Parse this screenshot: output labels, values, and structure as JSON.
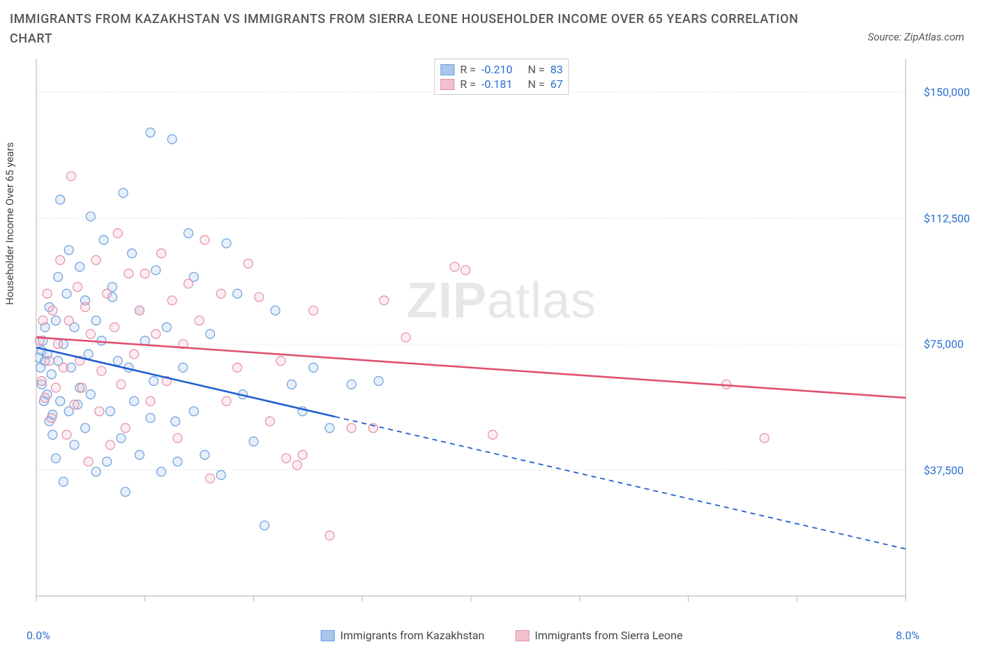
{
  "title": "IMMIGRANTS FROM KAZAKHSTAN VS IMMIGRANTS FROM SIERRA LEONE HOUSEHOLDER INCOME OVER 65 YEARS CORRELATION CHART",
  "source": "Source: ZipAtlas.com",
  "watermark_bold": "ZIP",
  "watermark_rest": "atlas",
  "chart": {
    "type": "scatter",
    "y_label": "Householder Income Over 65 years",
    "x_domain": [
      0.0,
      8.0
    ],
    "y_domain": [
      0,
      160000
    ],
    "x_ticks": [
      0.0,
      1.0,
      2.0,
      3.0,
      4.0,
      5.0,
      6.0,
      7.0,
      8.0
    ],
    "x_tick_labels": {
      "0": "0.0%",
      "8": "8.0%"
    },
    "y_ticks": [
      37500,
      75000,
      112500,
      150000
    ],
    "y_tick_labels": [
      "$37,500",
      "$75,000",
      "$112,500",
      "$150,000"
    ],
    "grid_color": "#e4e4e4",
    "axis_color": "#bfbfbf",
    "tick_len": 8,
    "background": "#ffffff",
    "marker_radius": 6.5,
    "marker_stroke_width": 1.2,
    "marker_fill_opacity": 0.28,
    "series": [
      {
        "id": "kaz",
        "name": "Immigrants from Kazakhstan",
        "color_stroke": "#6b9fe0",
        "color_fill": "#aac6ec",
        "line_color": "#1f5fd0",
        "stats": {
          "R_label": "R =",
          "R_value": "-0.210",
          "N_label": "N =",
          "N_value": "83"
        },
        "regression": {
          "x1": 0.0,
          "y1": 74000,
          "x2": 8.0,
          "y2": 14000,
          "solid_until_x": 2.75
        },
        "points": [
          [
            0.02,
            71000
          ],
          [
            0.04,
            68000
          ],
          [
            0.05,
            73000
          ],
          [
            0.06,
            76000
          ],
          [
            0.05,
            63000
          ],
          [
            0.08,
            70000
          ],
          [
            0.08,
            80000
          ],
          [
            0.07,
            58000
          ],
          [
            0.1,
            60000
          ],
          [
            0.1,
            72000
          ],
          [
            0.12,
            52000
          ],
          [
            0.12,
            86000
          ],
          [
            0.14,
            66000
          ],
          [
            0.15,
            54000
          ],
          [
            0.15,
            48000
          ],
          [
            0.18,
            82000
          ],
          [
            0.18,
            41000
          ],
          [
            0.2,
            70000
          ],
          [
            0.2,
            95000
          ],
          [
            0.22,
            58000
          ],
          [
            0.22,
            118000
          ],
          [
            0.25,
            75000
          ],
          [
            0.25,
            34000
          ],
          [
            0.28,
            90000
          ],
          [
            0.3,
            103000
          ],
          [
            0.3,
            55000
          ],
          [
            0.32,
            68000
          ],
          [
            0.35,
            45000
          ],
          [
            0.35,
            80000
          ],
          [
            0.38,
            57000
          ],
          [
            0.4,
            98000
          ],
          [
            0.4,
            62000
          ],
          [
            0.45,
            88000
          ],
          [
            0.45,
            50000
          ],
          [
            0.48,
            72000
          ],
          [
            0.5,
            113000
          ],
          [
            0.5,
            60000
          ],
          [
            0.55,
            37000
          ],
          [
            0.55,
            82000
          ],
          [
            0.6,
            76000
          ],
          [
            0.62,
            106000
          ],
          [
            0.65,
            40000
          ],
          [
            0.68,
            55000
          ],
          [
            0.7,
            92000
          ],
          [
            0.7,
            89000
          ],
          [
            0.75,
            70000
          ],
          [
            0.78,
            47000
          ],
          [
            0.8,
            120000
          ],
          [
            0.82,
            31000
          ],
          [
            0.85,
            68000
          ],
          [
            0.88,
            102000
          ],
          [
            0.9,
            58000
          ],
          [
            0.95,
            85000
          ],
          [
            0.95,
            42000
          ],
          [
            1.0,
            76000
          ],
          [
            1.05,
            138000
          ],
          [
            1.05,
            53000
          ],
          [
            1.08,
            64000
          ],
          [
            1.1,
            97000
          ],
          [
            1.15,
            37000
          ],
          [
            1.2,
            80000
          ],
          [
            1.25,
            136000
          ],
          [
            1.28,
            52000
          ],
          [
            1.3,
            40000
          ],
          [
            1.35,
            68000
          ],
          [
            1.4,
            108000
          ],
          [
            1.45,
            95000
          ],
          [
            1.45,
            55000
          ],
          [
            1.55,
            42000
          ],
          [
            1.6,
            78000
          ],
          [
            1.7,
            36000
          ],
          [
            1.75,
            105000
          ],
          [
            1.85,
            90000
          ],
          [
            1.9,
            60000
          ],
          [
            2.0,
            46000
          ],
          [
            2.1,
            21000
          ],
          [
            2.2,
            85000
          ],
          [
            2.35,
            63000
          ],
          [
            2.45,
            55000
          ],
          [
            2.55,
            68000
          ],
          [
            2.7,
            50000
          ],
          [
            2.9,
            63000
          ],
          [
            3.15,
            64000
          ]
        ]
      },
      {
        "id": "sle",
        "name": "Immigrants from Sierra Leone",
        "color_stroke": "#e58fa6",
        "color_fill": "#f3c0cd",
        "line_color": "#e0506f",
        "stats": {
          "R_label": "R =",
          "R_value": "-0.181",
          "N_label": "N =",
          "N_value": "67"
        },
        "regression": {
          "x1": 0.0,
          "y1": 77000,
          "x2": 8.0,
          "y2": 59000,
          "solid_until_x": 8.0
        },
        "points": [
          [
            0.03,
            76000
          ],
          [
            0.05,
            64000
          ],
          [
            0.06,
            82000
          ],
          [
            0.08,
            59000
          ],
          [
            0.1,
            90000
          ],
          [
            0.12,
            70000
          ],
          [
            0.14,
            53000
          ],
          [
            0.15,
            85000
          ],
          [
            0.18,
            62000
          ],
          [
            0.2,
            75000
          ],
          [
            0.22,
            100000
          ],
          [
            0.25,
            68000
          ],
          [
            0.28,
            48000
          ],
          [
            0.3,
            82000
          ],
          [
            0.32,
            125000
          ],
          [
            0.35,
            57000
          ],
          [
            0.38,
            92000
          ],
          [
            0.4,
            70000
          ],
          [
            0.42,
            62000
          ],
          [
            0.45,
            86000
          ],
          [
            0.48,
            40000
          ],
          [
            0.5,
            78000
          ],
          [
            0.55,
            100000
          ],
          [
            0.58,
            55000
          ],
          [
            0.6,
            67000
          ],
          [
            0.65,
            90000
          ],
          [
            0.68,
            45000
          ],
          [
            0.72,
            80000
          ],
          [
            0.75,
            108000
          ],
          [
            0.78,
            63000
          ],
          [
            0.82,
            50000
          ],
          [
            0.85,
            96000
          ],
          [
            0.9,
            72000
          ],
          [
            0.95,
            85000
          ],
          [
            1.0,
            96000
          ],
          [
            1.05,
            58000
          ],
          [
            1.1,
            78000
          ],
          [
            1.15,
            102000
          ],
          [
            1.2,
            64000
          ],
          [
            1.25,
            88000
          ],
          [
            1.3,
            47000
          ],
          [
            1.35,
            75000
          ],
          [
            1.4,
            93000
          ],
          [
            1.5,
            82000
          ],
          [
            1.55,
            106000
          ],
          [
            1.6,
            35000
          ],
          [
            1.7,
            90000
          ],
          [
            1.75,
            58000
          ],
          [
            1.85,
            68000
          ],
          [
            1.95,
            99000
          ],
          [
            2.05,
            89000
          ],
          [
            2.15,
            52000
          ],
          [
            2.25,
            70000
          ],
          [
            2.3,
            41000
          ],
          [
            2.4,
            39000
          ],
          [
            2.45,
            42000
          ],
          [
            2.55,
            85000
          ],
          [
            2.7,
            18000
          ],
          [
            2.9,
            50000
          ],
          [
            3.1,
            50000
          ],
          [
            3.2,
            88000
          ],
          [
            3.4,
            77000
          ],
          [
            3.85,
            98000
          ],
          [
            3.95,
            97000
          ],
          [
            6.35,
            63000
          ],
          [
            6.7,
            47000
          ],
          [
            4.2,
            48000
          ]
        ]
      }
    ]
  }
}
